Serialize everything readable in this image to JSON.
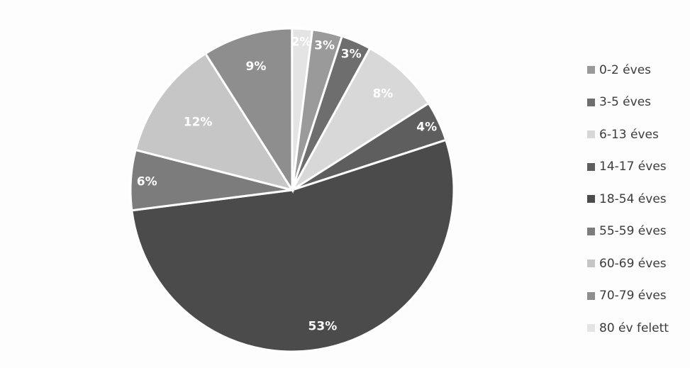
{
  "chart_data": {
    "type": "pie",
    "title": "",
    "legend_position": "right",
    "slices": [
      {
        "label": "0-2 éves",
        "value": 3,
        "value_label": "3%",
        "color": "#9a9a9a"
      },
      {
        "label": "3-5 éves",
        "value": 3,
        "value_label": "3%",
        "color": "#6e6e6e"
      },
      {
        "label": "6-13 éves",
        "value": 8,
        "value_label": "8%",
        "color": "#d8d8d8"
      },
      {
        "label": "14-17 éves",
        "value": 4,
        "value_label": "4%",
        "color": "#5e5e5e"
      },
      {
        "label": "18-54 éves",
        "value": 53,
        "value_label": "53%",
        "color": "#4b4b4b"
      },
      {
        "label": "55-59 éves",
        "value": 6,
        "value_label": "6%",
        "color": "#7c7c7c"
      },
      {
        "label": "60-69 éves",
        "value": 12,
        "value_label": "12%",
        "color": "#c6c6c6"
      },
      {
        "label": "70-79 éves",
        "value": 9,
        "value_label": "9%",
        "color": "#8e8e8e"
      },
      {
        "label": "80 év felett",
        "value": 2,
        "value_label": "2%",
        "color": "#e4e4e4"
      }
    ]
  }
}
